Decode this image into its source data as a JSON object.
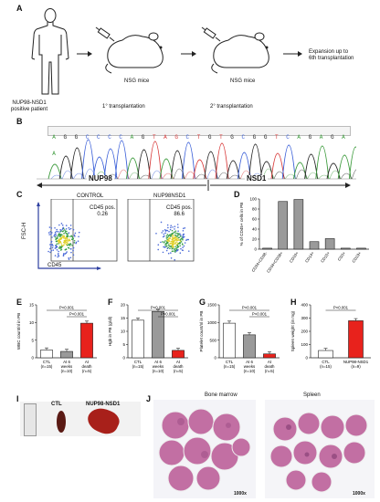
{
  "panelA": {
    "label": "A",
    "patient": "NUP98-NSD1\npositive patient",
    "mice1": "NSG mice",
    "mice2": "NSG mice",
    "transplant1": "1° transplantation",
    "transplant2": "2° transplantation",
    "expansion": "Expansion up to\n6th transplantation"
  },
  "panelB": {
    "label": "B",
    "sequence": [
      "A",
      "G",
      "G",
      "C",
      "C",
      "C",
      "C",
      "A",
      "G",
      "T",
      "A",
      "G",
      "C",
      "T",
      "G",
      "T",
      "G",
      "C",
      "G",
      "G",
      "T",
      "C",
      "A",
      "G",
      "A",
      "G",
      "A",
      "A"
    ],
    "highlight_indices": [
      10,
      11
    ],
    "left_gene": "NUP98",
    "right_gene": "NSD1"
  },
  "panelC": {
    "label": "C",
    "control_title": "CONTROL",
    "nup_title": "NUP98NSD1",
    "control_gate": "CD45 pos.\n0.26",
    "nup_gate": "CD45 pos.\n86.6",
    "yaxis": "FSC-H",
    "xaxis": "CD45"
  },
  "colors": {
    "red": "#e8221c",
    "grey": "#9a9a9a",
    "white": "#ffffff",
    "seq_red": "#d83a3a",
    "seq_green": "#3a9a3a",
    "seq_blue": "#3a5fd8",
    "seq_black": "#222222",
    "tissue": "#c26fa3"
  },
  "panelD": {
    "label": "D"
  },
  "panelE": {
    "label": "E"
  },
  "panelF": {
    "label": "F"
  },
  "panelG": {
    "label": "G"
  },
  "panelH": {
    "label": "H"
  },
  "panelI": {
    "label": "I",
    "ctl": "CTL",
    "nup": "NUP98-NSD1"
  },
  "panelJ": {
    "label": "J",
    "bm_title": "Bone marrow",
    "spleen_title": "Spleen",
    "mag1": "1000x",
    "mag2": "1000x"
  },
  "chart_data": [
    {
      "type": "bar",
      "panel": "D",
      "ylabel": "% of CD45+ cells in PB",
      "ylim": [
        0,
        100
      ],
      "yticks": [
        0,
        20,
        40,
        60,
        80,
        100
      ],
      "categories": [
        "CD34+CD38-",
        "CD34+CD38+",
        "CD33+",
        "CD14+",
        "CD15+",
        "CD3+",
        "CD19+"
      ],
      "values": [
        2,
        95,
        99,
        15,
        21,
        2,
        2
      ]
    },
    {
      "type": "bar",
      "panel": "E",
      "ylabel": "WBC count/nl in PB",
      "ylim": [
        0,
        15
      ],
      "yticks": [
        0,
        5,
        10,
        15
      ],
      "categories": [
        "CTL\n(n=15)",
        "At 6\nweeks\n(n=10)",
        "At\ndeath\n(n=5)"
      ],
      "values": [
        2.2,
        1.8,
        9.8
      ],
      "colors": [
        "white",
        "grey",
        "red"
      ],
      "pvalues": [
        "P<0.001",
        "P<0.001"
      ]
    },
    {
      "type": "bar",
      "panel": "F",
      "ylabel": "Hgb in PB (g/dl)",
      "ylim": [
        0,
        20
      ],
      "yticks": [
        0,
        5,
        10,
        15,
        20
      ],
      "categories": [
        "CTL\n(n=15)",
        "At 6\nweeks\n(n=10)",
        "At\ndeath\n(n=5)"
      ],
      "values": [
        14.2,
        17.5,
        2.8
      ],
      "colors": [
        "white",
        "grey",
        "red"
      ],
      "pvalues": [
        "P<0.001",
        "P<0.001"
      ]
    },
    {
      "type": "bar",
      "panel": "G",
      "ylabel": "Platelet count/nl in PB",
      "ylim": [
        0,
        1500
      ],
      "yticks": [
        0,
        500,
        1000,
        1500
      ],
      "categories": [
        "CTL\n(n=15)",
        "At 6\nweeks\n(n=10)",
        "At\ndeath\n(n=5)"
      ],
      "values": [
        980,
        650,
        110
      ],
      "colors": [
        "white",
        "grey",
        "red"
      ],
      "pvalues": [
        "P<0.001",
        "P<0.001"
      ]
    },
    {
      "type": "bar",
      "panel": "H",
      "ylabel": "Spleen weight (in mg)",
      "ylim": [
        0,
        400
      ],
      "yticks": [
        0,
        100,
        200,
        300,
        400
      ],
      "categories": [
        "CTL\n(n=15)",
        "NUP98-NSD1\n(n=9)"
      ],
      "values": [
        55,
        280
      ],
      "colors": [
        "white",
        "red"
      ],
      "pvalues": [
        "P<0.001"
      ]
    }
  ]
}
